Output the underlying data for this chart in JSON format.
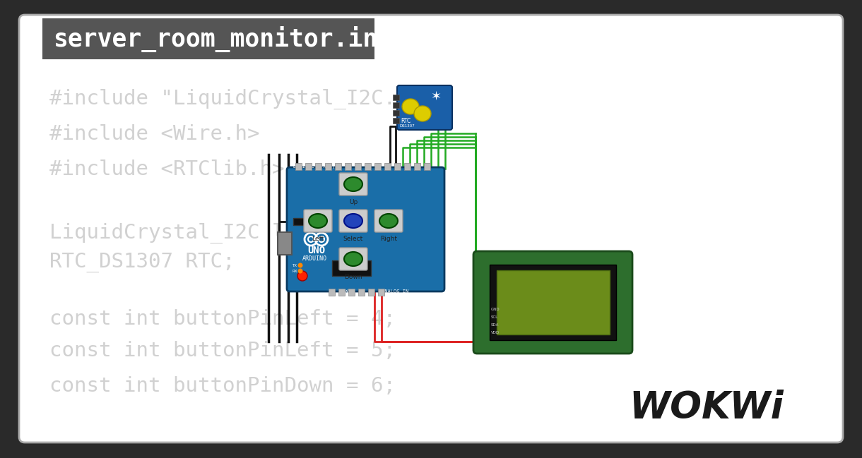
{
  "bg_color": "#ffffff",
  "outer_bg": "#2a2a2a",
  "title_bg": "#555555",
  "title_text": "server_room_monitor.ino",
  "title_color": "#ffffff",
  "code_color": "#cccccc",
  "wokwi_color": "#1a1a1a",
  "arduino_blue": "#1a6ea8",
  "arduino_dark": "#0a3a60",
  "lcd_green": "#2d6e2d",
  "lcd_screen": "#6b8c1a",
  "button_green": "#2d8a2d",
  "button_blue": "#2244bb",
  "rtc_blue": "#1a5fa8",
  "wire_green": "#22aa22",
  "wire_red": "#dd2222",
  "wire_black": "#111111",
  "code_lines": [
    "#include \"LiquidCrystal_I2C.h\"",
    "#include <Wire.h>",
    "#include <RTClib.h>",
    "LiquidCrystal_I2C lcd(0x2",
    "RTC_DS1307 RTC;",
    "const int buttonPinLeft = 4;",
    "const int buttonPinLeft = 5;",
    "const int buttonPinDown = 6;"
  ]
}
